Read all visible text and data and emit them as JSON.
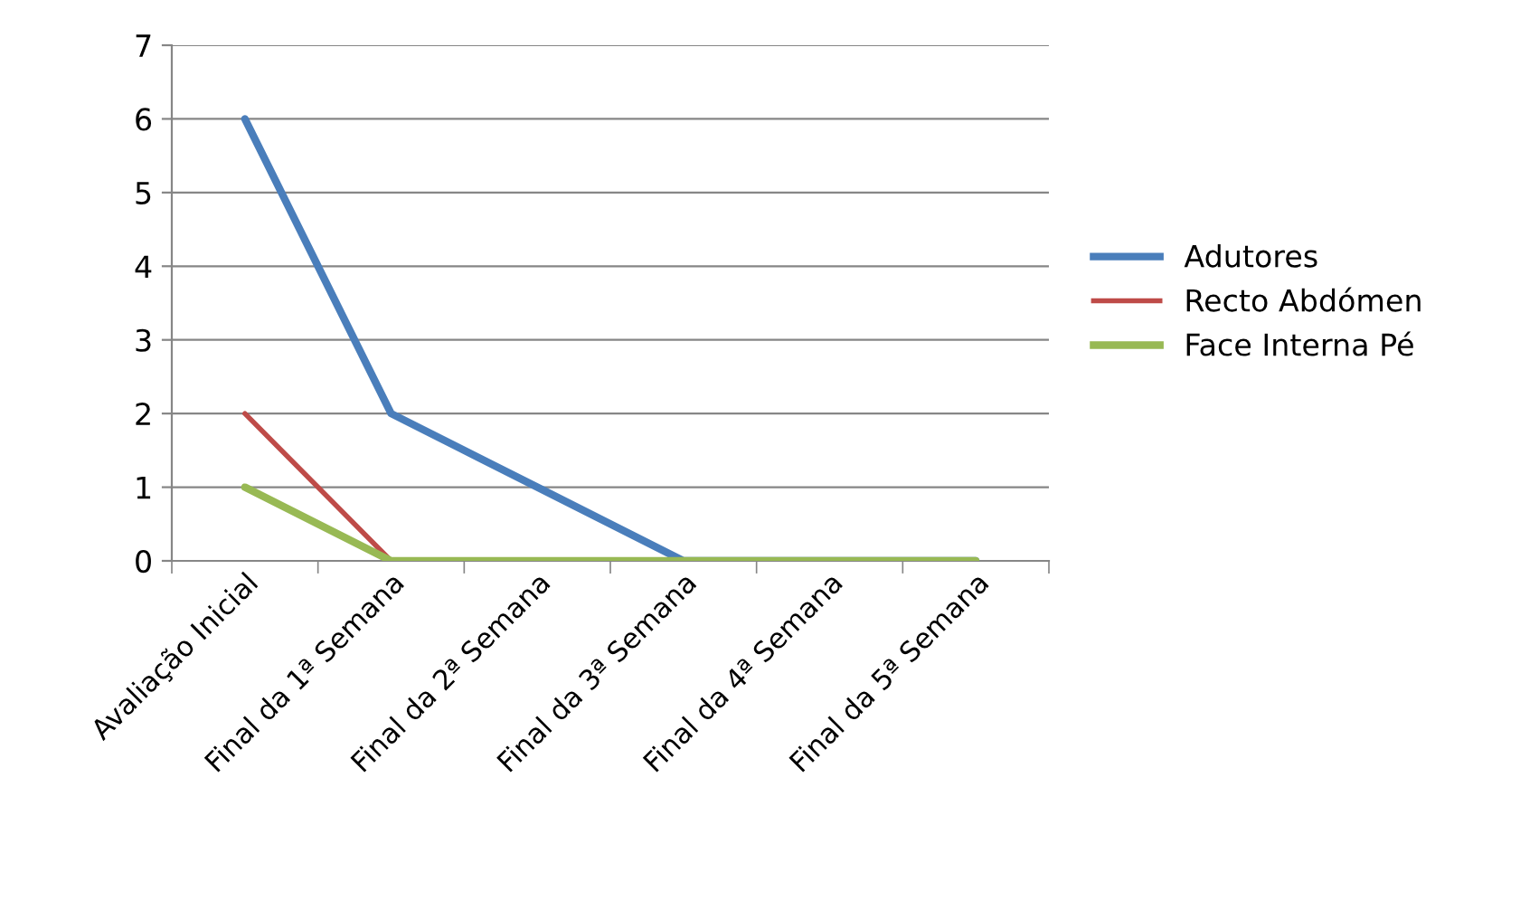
{
  "chart_data": {
    "type": "line",
    "categories": [
      "Avaliação Inicial",
      "Final da 1ª Semana",
      "Final da 2ª Semana",
      "Final da 3ª Semana",
      "Final da 4ª Semana",
      "Final da 5ª Semana"
    ],
    "series": [
      {
        "name": "Adutores",
        "color": "#4a7ebb",
        "values": [
          6,
          2,
          1,
          0,
          0,
          0
        ]
      },
      {
        "name": "Recto Abdómen",
        "color": "#be4b48",
        "values": [
          2,
          0,
          null,
          null,
          null,
          null
        ]
      },
      {
        "name": "Face Interna Pé",
        "color": "#98b954",
        "values": [
          1,
          0,
          0,
          0,
          0,
          0
        ]
      }
    ],
    "ylim": [
      0,
      7
    ],
    "yticks": [
      0,
      1,
      2,
      3,
      4,
      5,
      6,
      7
    ],
    "grid": "y",
    "legend": "right",
    "marker": "none",
    "line_style": "solid"
  }
}
